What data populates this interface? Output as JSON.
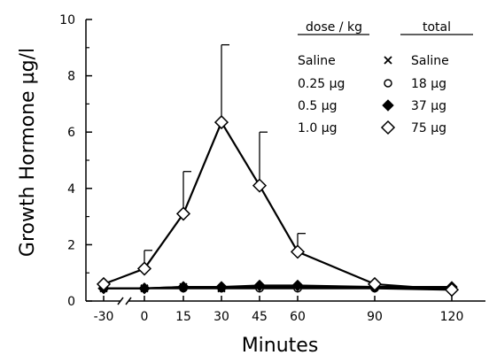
{
  "chart_data": {
    "type": "line",
    "xlabel": "Minutes",
    "ylabel": "Growth Hormone  µg/l",
    "x_ticks": [
      -30,
      0,
      15,
      30,
      45,
      60,
      90,
      120
    ],
    "y_ticks": [
      0,
      2,
      4,
      6,
      8,
      10
    ],
    "ylim": [
      0,
      10
    ],
    "axis_break_between": [
      -30,
      0
    ],
    "grid": false,
    "legend_position": "top-right",
    "legend": {
      "header_dose": "dose / kg",
      "header_total": "total",
      "rows": [
        {
          "dose": "Saline",
          "marker_symbol": "×",
          "total": "Saline"
        },
        {
          "dose": "0.25 µg",
          "marker_symbol": "○",
          "total": "18 µg"
        },
        {
          "dose": "0.5  µg",
          "marker_symbol": "◆",
          "total": "37 µg"
        },
        {
          "dose": "1.0  µg",
          "marker_symbol": "◇",
          "total": "75 µg"
        }
      ]
    },
    "series": [
      {
        "name": "Saline",
        "marker": "x",
        "x": [
          -30,
          0,
          15,
          30,
          45,
          60,
          90,
          120
        ],
        "y": [
          0.45,
          0.45,
          0.5,
          0.45,
          0.5,
          0.5,
          0.5,
          0.45
        ]
      },
      {
        "name": "0.25 µg",
        "marker": "circle",
        "x": [
          -30,
          0,
          15,
          30,
          45,
          60,
          90,
          120
        ],
        "y": [
          0.45,
          0.45,
          0.45,
          0.45,
          0.45,
          0.45,
          0.45,
          0.4
        ]
      },
      {
        "name": "0.5 µg",
        "marker": "diamond-filled",
        "x": [
          -30,
          0,
          15,
          30,
          45,
          60,
          90,
          120
        ],
        "y": [
          0.45,
          0.45,
          0.5,
          0.5,
          0.55,
          0.55,
          0.5,
          0.5
        ]
      },
      {
        "name": "1.0 µg",
        "marker": "diamond-open",
        "x": [
          -30,
          0,
          15,
          30,
          45,
          60,
          90,
          120
        ],
        "y": [
          0.6,
          1.15,
          3.1,
          6.35,
          4.1,
          1.75,
          0.6,
          0.4
        ],
        "error_upper": [
          null,
          1.8,
          4.6,
          9.1,
          6.0,
          2.4,
          null,
          null
        ]
      }
    ]
  }
}
